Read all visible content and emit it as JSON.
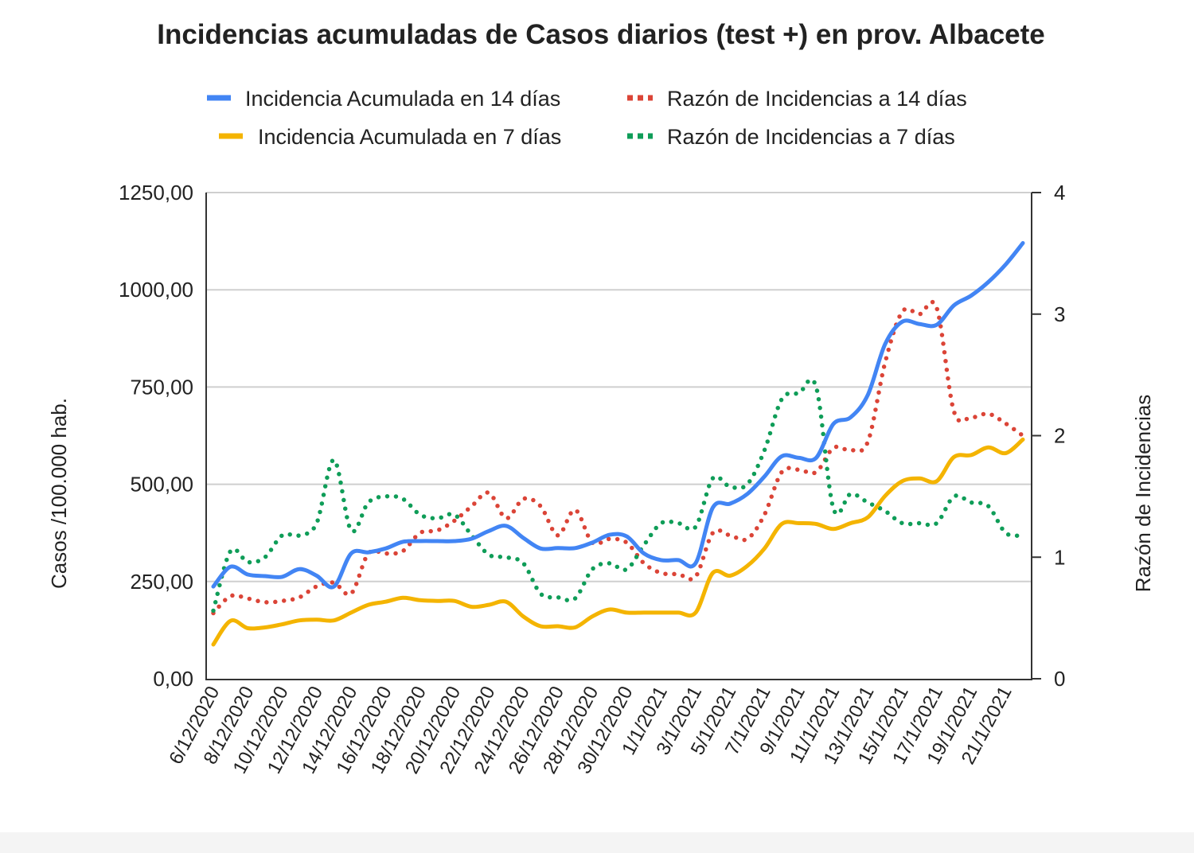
{
  "chart_data": {
    "type": "line",
    "title": "Incidencias acumuladas de Casos diarios (test +) en prov. Albacete",
    "ylabel": "Casos /100.000 hab.",
    "y2label": "Razón de Incidencias",
    "ylim": [
      0,
      1250
    ],
    "y2lim": [
      0,
      4
    ],
    "yticks": [
      "0,00",
      "250,00",
      "500,00",
      "750,00",
      "1000,00",
      "1250,00"
    ],
    "yticks_values": [
      0,
      250,
      500,
      750,
      1000,
      1250
    ],
    "y2ticks": [
      "0",
      "1",
      "2",
      "3",
      "4"
    ],
    "y2ticks_values": [
      0,
      1,
      2,
      3,
      4
    ],
    "grid": true,
    "legend_position": "top",
    "x": [
      "6/12/2020",
      "7/12/2020",
      "8/12/2020",
      "9/12/2020",
      "10/12/2020",
      "11/12/2020",
      "12/12/2020",
      "13/12/2020",
      "14/12/2020",
      "15/12/2020",
      "16/12/2020",
      "17/12/2020",
      "18/12/2020",
      "19/12/2020",
      "20/12/2020",
      "21/12/2020",
      "22/12/2020",
      "23/12/2020",
      "24/12/2020",
      "25/12/2020",
      "26/12/2020",
      "27/12/2020",
      "28/12/2020",
      "29/12/2020",
      "30/12/2020",
      "31/12/2020",
      "1/1/2021",
      "2/1/2021",
      "3/1/2021",
      "4/1/2021",
      "5/1/2021",
      "6/1/2021",
      "7/1/2021",
      "8/1/2021",
      "9/1/2021",
      "10/1/2021",
      "11/1/2021",
      "12/1/2021",
      "13/1/2021",
      "14/1/2021",
      "15/1/2021",
      "16/1/2021",
      "17/1/2021",
      "18/1/2021",
      "19/1/2021",
      "20/1/2021",
      "21/1/2021",
      "22/1/2021"
    ],
    "xtick_labels": [
      "6/12/2020",
      "8/12/2020",
      "10/12/2020",
      "12/12/2020",
      "14/12/2020",
      "16/12/2020",
      "18/12/2020",
      "20/12/2020",
      "22/12/2020",
      "24/12/2020",
      "26/12/2020",
      "28/12/2020",
      "30/12/2020",
      "1/1/2021",
      "3/1/2021",
      "5/1/2021",
      "7/1/2021",
      "9/1/2021",
      "11/1/2021",
      "13/1/2021",
      "15/1/2021",
      "17/1/2021",
      "19/1/2021",
      "21/1/2021"
    ],
    "series": [
      {
        "name": "Incidencia Acumulada en 14 días",
        "axis": "left",
        "style": "solid",
        "color": "#4285f4",
        "values": [
          237,
          288,
          268,
          264,
          262,
          282,
          265,
          237,
          322,
          325,
          335,
          352,
          354,
          354,
          354,
          360,
          380,
          393,
          362,
          335,
          336,
          336,
          350,
          370,
          366,
          322,
          305,
          305,
          297,
          440,
          450,
          475,
          520,
          572,
          568,
          568,
          655,
          672,
          730,
          860,
          918,
          912,
          910,
          960,
          985,
          1020,
          1065,
          1120
        ]
      },
      {
        "name": "Incidencia Acumulada en 7 días",
        "axis": "left",
        "style": "solid",
        "color": "#f4b400",
        "values": [
          88,
          149,
          130,
          132,
          140,
          150,
          152,
          150,
          170,
          190,
          198,
          208,
          202,
          200,
          200,
          185,
          190,
          198,
          160,
          135,
          135,
          132,
          160,
          178,
          170,
          170,
          170,
          170,
          170,
          272,
          265,
          290,
          335,
          398,
          400,
          398,
          385,
          400,
          415,
          470,
          508,
          515,
          508,
          570,
          575,
          595,
          580,
          615
        ]
      },
      {
        "name": "Razón de Incidencias a 14 días",
        "axis": "right",
        "style": "dotted",
        "color": "#db4437",
        "values": [
          0.54,
          0.68,
          0.66,
          0.63,
          0.64,
          0.67,
          0.76,
          0.79,
          0.7,
          1.03,
          1.03,
          1.05,
          1.2,
          1.22,
          1.3,
          1.42,
          1.53,
          1.32,
          1.48,
          1.42,
          1.18,
          1.39,
          1.12,
          1.15,
          1.12,
          0.95,
          0.87,
          0.86,
          0.84,
          1.2,
          1.18,
          1.15,
          1.35,
          1.7,
          1.72,
          1.7,
          1.9,
          1.88,
          1.95,
          2.6,
          3.02,
          3.0,
          3.05,
          2.2,
          2.15,
          2.18,
          2.1,
          2.0
        ]
      },
      {
        "name": "Razón de Incidencias a 7 días",
        "axis": "right",
        "style": "dotted",
        "color": "#0f9d58",
        "values": [
          0.56,
          1.05,
          0.96,
          1.0,
          1.18,
          1.18,
          1.28,
          1.8,
          1.22,
          1.45,
          1.5,
          1.48,
          1.35,
          1.32,
          1.35,
          1.18,
          1.02,
          1.0,
          0.95,
          0.7,
          0.67,
          0.66,
          0.9,
          0.95,
          0.9,
          1.1,
          1.28,
          1.28,
          1.25,
          1.65,
          1.58,
          1.6,
          1.88,
          2.3,
          2.35,
          2.4,
          1.4,
          1.52,
          1.45,
          1.38,
          1.28,
          1.28,
          1.28,
          1.5,
          1.45,
          1.42,
          1.2,
          1.18
        ]
      }
    ]
  }
}
